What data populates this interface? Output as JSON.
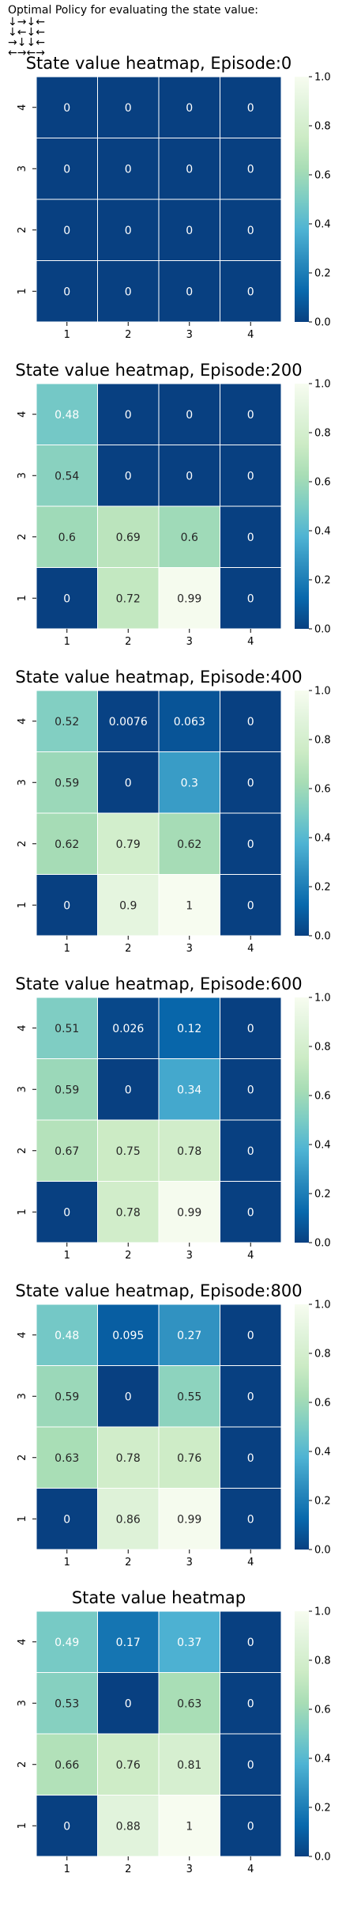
{
  "policy": {
    "title": "Optimal Policy for evaluating the state value:",
    "rows": [
      "↓→↓←",
      "↓←↓←",
      "→↓↓←",
      "←→←→"
    ]
  },
  "colors": {
    "cmap_dark": "#084081",
    "cmap_light": "#f7fcf0",
    "grid_line": "#ffffff"
  },
  "chart_data": [
    {
      "type": "heatmap",
      "title": "State value heatmap, Episode:0",
      "x_ticks": [
        "1",
        "2",
        "3",
        "4"
      ],
      "y_ticks": [
        "4",
        "3",
        "2",
        "1"
      ],
      "values": [
        [
          0,
          0,
          0,
          0
        ],
        [
          0,
          0,
          0,
          0
        ],
        [
          0,
          0,
          0,
          0
        ],
        [
          0,
          0,
          0,
          0
        ]
      ],
      "labels": [
        [
          "0",
          "0",
          "0",
          "0"
        ],
        [
          "0",
          "0",
          "0",
          "0"
        ],
        [
          "0",
          "0",
          "0",
          "0"
        ],
        [
          "0",
          "0",
          "0",
          "0"
        ]
      ],
      "colorbar": {
        "range": [
          0,
          1
        ],
        "ticks": [
          "0.0",
          "0.2",
          "0.4",
          "0.6",
          "0.8",
          "1.0"
        ]
      }
    },
    {
      "type": "heatmap",
      "title": "State value heatmap, Episode:200",
      "x_ticks": [
        "1",
        "2",
        "3",
        "4"
      ],
      "y_ticks": [
        "4",
        "3",
        "2",
        "1"
      ],
      "values": [
        [
          0.48,
          0,
          0,
          0
        ],
        [
          0.54,
          0,
          0,
          0
        ],
        [
          0.6,
          0.69,
          0.6,
          0
        ],
        [
          0,
          0.72,
          0.99,
          0
        ]
      ],
      "labels": [
        [
          "0.48",
          "0",
          "0",
          "0"
        ],
        [
          "0.54",
          "0",
          "0",
          "0"
        ],
        [
          "0.6",
          "0.69",
          "0.6",
          "0"
        ],
        [
          "0",
          "0.72",
          "0.99",
          "0"
        ]
      ],
      "colorbar": {
        "range": [
          0,
          1
        ],
        "ticks": [
          "0.0",
          "0.2",
          "0.4",
          "0.6",
          "0.8",
          "1.0"
        ]
      }
    },
    {
      "type": "heatmap",
      "title": "State value heatmap, Episode:400",
      "x_ticks": [
        "1",
        "2",
        "3",
        "4"
      ],
      "y_ticks": [
        "4",
        "3",
        "2",
        "1"
      ],
      "values": [
        [
          0.52,
          0.0076,
          0.063,
          0
        ],
        [
          0.59,
          0,
          0.3,
          0
        ],
        [
          0.62,
          0.79,
          0.62,
          0
        ],
        [
          0,
          0.9,
          1,
          0
        ]
      ],
      "labels": [
        [
          "0.52",
          "0.0076",
          "0.063",
          "0"
        ],
        [
          "0.59",
          "0",
          "0.3",
          "0"
        ],
        [
          "0.62",
          "0.79",
          "0.62",
          "0"
        ],
        [
          "0",
          "0.9",
          "1",
          "0"
        ]
      ],
      "colorbar": {
        "range": [
          0,
          1
        ],
        "ticks": [
          "0.0",
          "0.2",
          "0.4",
          "0.6",
          "0.8",
          "1.0"
        ]
      }
    },
    {
      "type": "heatmap",
      "title": "State value heatmap, Episode:600",
      "x_ticks": [
        "1",
        "2",
        "3",
        "4"
      ],
      "y_ticks": [
        "4",
        "3",
        "2",
        "1"
      ],
      "values": [
        [
          0.51,
          0.026,
          0.12,
          0
        ],
        [
          0.59,
          0,
          0.34,
          0
        ],
        [
          0.67,
          0.75,
          0.78,
          0
        ],
        [
          0,
          0.78,
          0.99,
          0
        ]
      ],
      "labels": [
        [
          "0.51",
          "0.026",
          "0.12",
          "0"
        ],
        [
          "0.59",
          "0",
          "0.34",
          "0"
        ],
        [
          "0.67",
          "0.75",
          "0.78",
          "0"
        ],
        [
          "0",
          "0.78",
          "0.99",
          "0"
        ]
      ],
      "colorbar": {
        "range": [
          0,
          1
        ],
        "ticks": [
          "0.0",
          "0.2",
          "0.4",
          "0.6",
          "0.8",
          "1.0"
        ]
      }
    },
    {
      "type": "heatmap",
      "title": "State value heatmap, Episode:800",
      "x_ticks": [
        "1",
        "2",
        "3",
        "4"
      ],
      "y_ticks": [
        "4",
        "3",
        "2",
        "1"
      ],
      "values": [
        [
          0.48,
          0.095,
          0.27,
          0
        ],
        [
          0.59,
          0,
          0.55,
          0
        ],
        [
          0.63,
          0.78,
          0.76,
          0
        ],
        [
          0,
          0.86,
          0.99,
          0
        ]
      ],
      "labels": [
        [
          "0.48",
          "0.095",
          "0.27",
          "0"
        ],
        [
          "0.59",
          "0",
          "0.55",
          "0"
        ],
        [
          "0.63",
          "0.78",
          "0.76",
          "0"
        ],
        [
          "0",
          "0.86",
          "0.99",
          "0"
        ]
      ],
      "colorbar": {
        "range": [
          0,
          1
        ],
        "ticks": [
          "0.0",
          "0.2",
          "0.4",
          "0.6",
          "0.8",
          "1.0"
        ]
      }
    },
    {
      "type": "heatmap",
      "title": "State value heatmap",
      "x_ticks": [
        "1",
        "2",
        "3",
        "4"
      ],
      "y_ticks": [
        "4",
        "3",
        "2",
        "1"
      ],
      "values": [
        [
          0.49,
          0.17,
          0.37,
          0
        ],
        [
          0.53,
          0,
          0.63,
          0
        ],
        [
          0.66,
          0.76,
          0.81,
          0
        ],
        [
          0,
          0.88,
          1,
          0
        ]
      ],
      "labels": [
        [
          "0.49",
          "0.17",
          "0.37",
          "0"
        ],
        [
          "0.53",
          "0",
          "0.63",
          "0"
        ],
        [
          "0.66",
          "0.76",
          "0.81",
          "0"
        ],
        [
          "0",
          "0.88",
          "1",
          "0"
        ]
      ],
      "colorbar": {
        "range": [
          0,
          1
        ],
        "ticks": [
          "0.0",
          "0.2",
          "0.4",
          "0.6",
          "0.8",
          "1.0"
        ]
      }
    }
  ]
}
